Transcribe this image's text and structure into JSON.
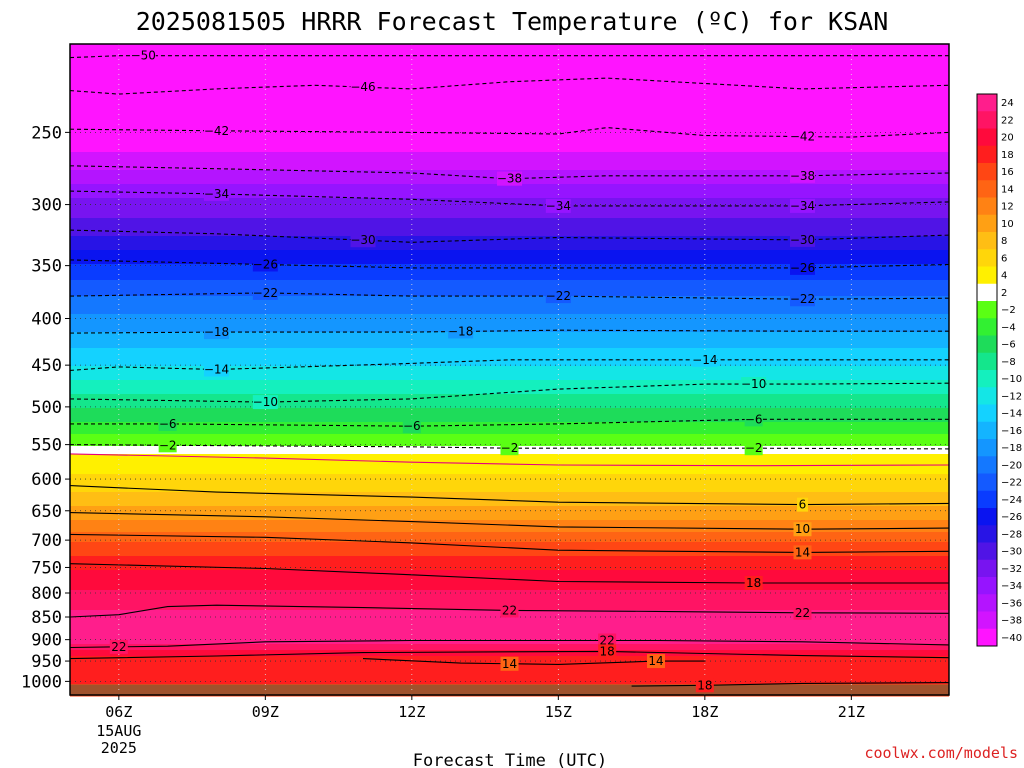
{
  "title": "2025081505 HRRR Forecast Temperature (ºC) for KSAN",
  "credit": "coolwx.com/models",
  "chart_data": {
    "type": "heatmap",
    "title": "2025081505 HRRR Forecast Temperature (ºC) for KSAN",
    "xlabel": "Forecast Time (UTC)",
    "ylabel": "",
    "x_ticks": [
      "06Z",
      "09Z",
      "12Z",
      "15Z",
      "18Z",
      "21Z"
    ],
    "x_date_lines": [
      "15AUG",
      "2025"
    ],
    "x_range_hours": [
      5,
      23
    ],
    "y_ticks": [
      250,
      300,
      350,
      400,
      450,
      500,
      550,
      600,
      650,
      700,
      750,
      800,
      850,
      900,
      950,
      1000
    ],
    "y_range_hPa": [
      200,
      1035
    ],
    "y_scale": "log",
    "colorbar_levels": [
      24,
      22,
      20,
      18,
      16,
      14,
      12,
      10,
      8,
      6,
      4,
      2,
      -2,
      -4,
      -6,
      -8,
      -10,
      -12,
      -14,
      -16,
      -18,
      -20,
      -22,
      -24,
      -26,
      -28,
      -30,
      -32,
      -34,
      -36,
      -38,
      -40
    ],
    "colorbar_colors": [
      "#ff1e8c",
      "#ff1464",
      "#ff0a3c",
      "#ff1e1e",
      "#ff4614",
      "#ff6414",
      "#ff8214",
      "#ffa014",
      "#ffbe14",
      "#ffd60a",
      "#fff000",
      "#ffffff",
      "#5aff14",
      "#32f032",
      "#1edc5a",
      "#14e68c",
      "#14f0be",
      "#14e6e6",
      "#14d2ff",
      "#14b4ff",
      "#1496ff",
      "#1478ff",
      "#145aff",
      "#0a3cff",
      "#0a14f0",
      "#2814e6",
      "#5014e6",
      "#7814f0",
      "#9614ff",
      "#b414ff",
      "#d214ff",
      "#ff14ff"
    ],
    "contour_lines": [
      {
        "level": -50,
        "points": [
          [
            5,
            207
          ],
          [
            6,
            206
          ],
          [
            7,
            206
          ],
          [
            8,
            206
          ],
          [
            23,
            206
          ]
        ],
        "labels": [
          [
            6.5,
            -50
          ]
        ]
      },
      {
        "level": -46,
        "points": [
          [
            5,
            225
          ],
          [
            6,
            227
          ],
          [
            8,
            224
          ],
          [
            10,
            222
          ],
          [
            12,
            224
          ],
          [
            14,
            220
          ],
          [
            16,
            218
          ],
          [
            18,
            221
          ],
          [
            20,
            224
          ],
          [
            23,
            222
          ]
        ],
        "labels": [
          [
            11,
            -46
          ]
        ]
      },
      {
        "level": -42,
        "points": [
          [
            5,
            248
          ],
          [
            8,
            249
          ],
          [
            12,
            250
          ],
          [
            15,
            251
          ],
          [
            16,
            247
          ],
          [
            18,
            252
          ],
          [
            21,
            253
          ],
          [
            23,
            250
          ]
        ],
        "labels": [
          [
            8,
            -42
          ],
          [
            20,
            -42
          ]
        ]
      },
      {
        "level": -38,
        "points": [
          [
            5,
            272
          ],
          [
            8,
            274
          ],
          [
            12,
            277
          ],
          [
            14,
            281
          ],
          [
            16,
            279
          ],
          [
            20,
            279
          ],
          [
            23,
            277
          ]
        ],
        "labels": [
          [
            14,
            -38
          ],
          [
            20,
            -38
          ]
        ]
      },
      {
        "level": -34,
        "points": [
          [
            5,
            290
          ],
          [
            8,
            292
          ],
          [
            12,
            296
          ],
          [
            15,
            301
          ],
          [
            20,
            301
          ],
          [
            23,
            298
          ]
        ],
        "labels": [
          [
            8,
            -34
          ],
          [
            15,
            -34
          ],
          [
            20,
            -34
          ]
        ]
      },
      {
        "level": -30,
        "points": [
          [
            5,
            320
          ],
          [
            8,
            323
          ],
          [
            12,
            330
          ],
          [
            15,
            326
          ],
          [
            20,
            328
          ],
          [
            23,
            324
          ]
        ],
        "labels": [
          [
            11,
            -30
          ],
          [
            20,
            -30
          ]
        ]
      },
      {
        "level": -26,
        "points": [
          [
            5,
            345
          ],
          [
            7,
            347
          ],
          [
            9,
            349
          ],
          [
            12,
            352
          ],
          [
            15,
            352
          ],
          [
            20,
            352
          ],
          [
            23,
            349
          ]
        ],
        "labels": [
          [
            9,
            -26
          ],
          [
            20,
            -26
          ]
        ]
      },
      {
        "level": -22,
        "points": [
          [
            5,
            378
          ],
          [
            9,
            375
          ],
          [
            12,
            378
          ],
          [
            15,
            378
          ],
          [
            20,
            381
          ],
          [
            23,
            380
          ]
        ],
        "labels": [
          [
            9,
            -22
          ],
          [
            15,
            -22
          ],
          [
            20,
            -22
          ]
        ]
      },
      {
        "level": -18,
        "points": [
          [
            5,
            415
          ],
          [
            8,
            414
          ],
          [
            12,
            414
          ],
          [
            15,
            412
          ],
          [
            20,
            413
          ],
          [
            23,
            413
          ]
        ],
        "labels": [
          [
            8,
            -18
          ],
          [
            13,
            -18
          ]
        ]
      },
      {
        "level": -14,
        "points": [
          [
            5,
            456
          ],
          [
            6,
            452
          ],
          [
            8,
            455
          ],
          [
            12,
            448
          ],
          [
            14,
            444
          ],
          [
            18,
            444
          ],
          [
            23,
            444
          ]
        ],
        "labels": [
          [
            8,
            -14
          ],
          [
            18,
            -14
          ]
        ]
      },
      {
        "level": -10,
        "points": [
          [
            5,
            490
          ],
          [
            9,
            494
          ],
          [
            12,
            490
          ],
          [
            15,
            478
          ],
          [
            18,
            472
          ],
          [
            20,
            472
          ],
          [
            23,
            471
          ]
        ],
        "labels": [
          [
            9,
            -10
          ],
          [
            19,
            -10
          ]
        ]
      },
      {
        "level": -6,
        "points": [
          [
            5,
            522
          ],
          [
            7,
            522
          ],
          [
            12,
            525
          ],
          [
            15,
            522
          ],
          [
            19,
            516
          ],
          [
            23,
            516
          ]
        ],
        "labels": [
          [
            7,
            -6
          ],
          [
            12,
            -6
          ],
          [
            19,
            -6
          ]
        ]
      },
      {
        "level": -2,
        "points": [
          [
            5,
            550
          ],
          [
            7,
            551
          ],
          [
            12,
            553
          ],
          [
            14,
            555
          ],
          [
            19,
            555
          ],
          [
            23,
            556
          ]
        ],
        "labels": [
          [
            7,
            -2
          ],
          [
            14,
            -2
          ],
          [
            19,
            -2
          ]
        ]
      }
    ],
    "contour_lines_positive": [
      {
        "level": 2,
        "points": [
          [
            5,
            563
          ],
          [
            9,
            569
          ],
          [
            12,
            575
          ],
          [
            15,
            579
          ],
          [
            19,
            580
          ],
          [
            23,
            579
          ]
        ],
        "labels": []
      },
      {
        "level": 6,
        "points": [
          [
            5,
            610
          ],
          [
            8,
            620
          ],
          [
            12,
            628
          ],
          [
            15,
            636
          ],
          [
            20,
            640
          ],
          [
            23,
            638
          ]
        ],
        "labels": [
          [
            20,
            6
          ]
        ]
      },
      {
        "level": 10,
        "points": [
          [
            5,
            653
          ],
          [
            9,
            660
          ],
          [
            12,
            668
          ],
          [
            15,
            677
          ],
          [
            20,
            681
          ],
          [
            23,
            679
          ]
        ],
        "labels": [
          [
            20,
            10
          ]
        ]
      },
      {
        "level": 14,
        "points": [
          [
            5,
            690
          ],
          [
            9,
            695
          ],
          [
            12,
            705
          ],
          [
            15,
            718
          ],
          [
            20,
            722
          ],
          [
            23,
            720
          ]
        ],
        "labels": [
          [
            20,
            14
          ]
        ]
      },
      {
        "level": 18,
        "points": [
          [
            5,
            743
          ],
          [
            9,
            752
          ],
          [
            12,
            764
          ],
          [
            15,
            777
          ],
          [
            19,
            780
          ],
          [
            23,
            780
          ]
        ],
        "labels": [
          [
            19,
            18
          ]
        ]
      },
      {
        "level": 22,
        "points": [
          [
            5,
            850
          ],
          [
            6,
            845
          ],
          [
            7,
            828
          ],
          [
            8,
            825
          ],
          [
            11,
            830
          ],
          [
            14,
            836
          ],
          [
            17,
            838
          ],
          [
            20,
            841
          ],
          [
            23,
            842
          ]
        ],
        "labels": [
          [
            14,
            22
          ],
          [
            20,
            22
          ]
        ]
      },
      {
        "level": 22,
        "points": [
          [
            5,
            918
          ],
          [
            7,
            915
          ],
          [
            9,
            905
          ],
          [
            12,
            902
          ],
          [
            15,
            902
          ],
          [
            17,
            902
          ],
          [
            20,
            905
          ],
          [
            23,
            912
          ]
        ],
        "labels": [
          [
            6,
            22
          ],
          [
            16,
            22
          ]
        ]
      },
      {
        "level": 18,
        "points": [
          [
            5,
            944
          ],
          [
            8,
            938
          ],
          [
            11,
            930
          ],
          [
            14,
            928
          ],
          [
            16,
            927
          ],
          [
            18,
            932
          ],
          [
            20,
            937
          ],
          [
            23,
            942
          ]
        ],
        "labels": [
          [
            16,
            18
          ]
        ]
      },
      {
        "level": 14,
        "points": [
          [
            11,
            944
          ],
          [
            13,
            955
          ],
          [
            15,
            958
          ],
          [
            17,
            950
          ],
          [
            18,
            950
          ]
        ],
        "labels": [
          [
            14,
            14
          ],
          [
            17,
            14
          ]
        ]
      },
      {
        "level": 18,
        "points": [
          [
            16.5,
            1012
          ],
          [
            18,
            1010
          ],
          [
            20,
            1005
          ],
          [
            23,
            1003
          ]
        ],
        "labels": [
          [
            18,
            18
          ]
        ]
      }
    ]
  }
}
